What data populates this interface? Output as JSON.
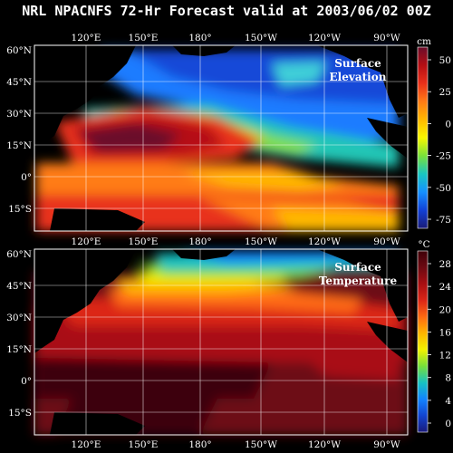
{
  "title": "NRL NPACNFS 72-Hr Forecast valid at 2003/06/02 00Z",
  "lon_labels": [
    "120°E",
    "150°E",
    "180°",
    "150°W",
    "120°W",
    "90°W"
  ],
  "lat_labels": [
    "60°N",
    "45°N",
    "30°N",
    "15°N",
    "0°",
    "15°S"
  ],
  "panels": [
    {
      "name": "Surface Elevation",
      "label_lines": [
        "Surface",
        "Elevation"
      ],
      "unit": "cm",
      "colorbar_ticks": [
        "50",
        "25",
        "0",
        "-25",
        "-50",
        "-75"
      ],
      "colors": [
        "#6a0d2a",
        "#b50e14",
        "#e8301a",
        "#ff7b16",
        "#ffb800",
        "#f7f700",
        "#79e23a",
        "#19c6c1",
        "#1590ff",
        "#1241d6",
        "#1a1b78"
      ]
    },
    {
      "name": "Surface Temperature",
      "label_lines": [
        "Surface",
        "Temperature"
      ],
      "unit": "°C",
      "colorbar_ticks": [
        "28",
        "24",
        "20",
        "16",
        "12",
        "8",
        "4",
        "0"
      ],
      "colors": [
        "#3e0008",
        "#6d0a12",
        "#a90e12",
        "#dc2617",
        "#ff6a12",
        "#ffb600",
        "#f2f200",
        "#76df3b",
        "#17c2c2",
        "#1284ff",
        "#1244d0",
        "#1a1a7a"
      ]
    }
  ]
}
